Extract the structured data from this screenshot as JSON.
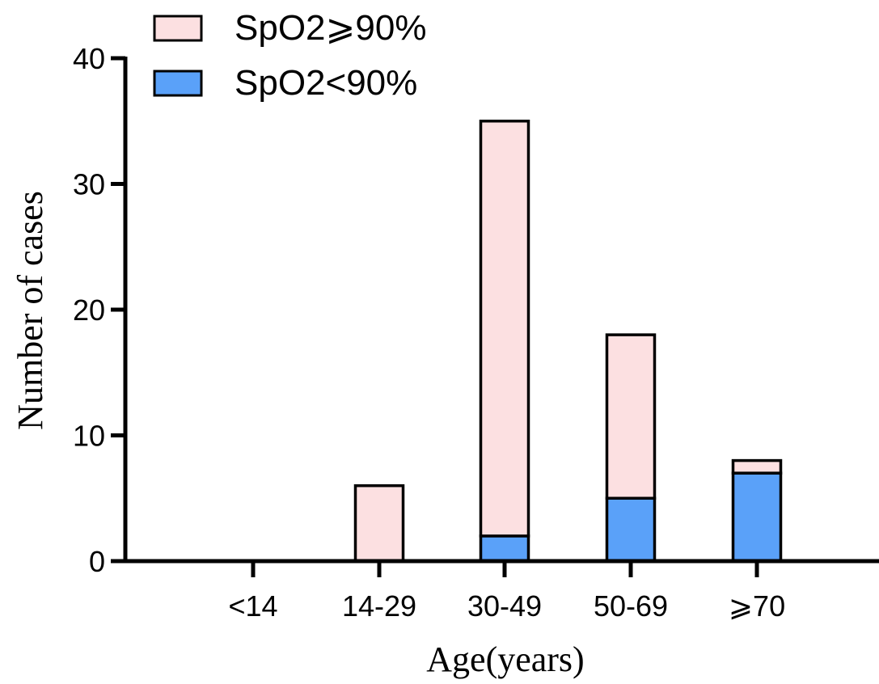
{
  "chart_data": {
    "type": "bar",
    "stacked": true,
    "categories": [
      "<14",
      "14-29",
      "30-49",
      "50-69",
      "⩾70"
    ],
    "series": [
      {
        "name": "SpO2<90%",
        "values": [
          0,
          0,
          2,
          5,
          7
        ],
        "color": "#5aa1f9"
      },
      {
        "name": "SpO2⩾90%",
        "values": [
          0,
          6,
          33,
          13,
          1
        ],
        "color": "#fce0e1"
      }
    ],
    "xlabel": "Age(years)",
    "ylabel": "Number of cases",
    "ylim": [
      0,
      40
    ],
    "yticks": [
      0,
      10,
      20,
      30,
      40
    ],
    "grid": false,
    "legend_position": "top-left",
    "legend_order": [
      "SpO2⩾90%",
      "SpO2<90%"
    ]
  }
}
